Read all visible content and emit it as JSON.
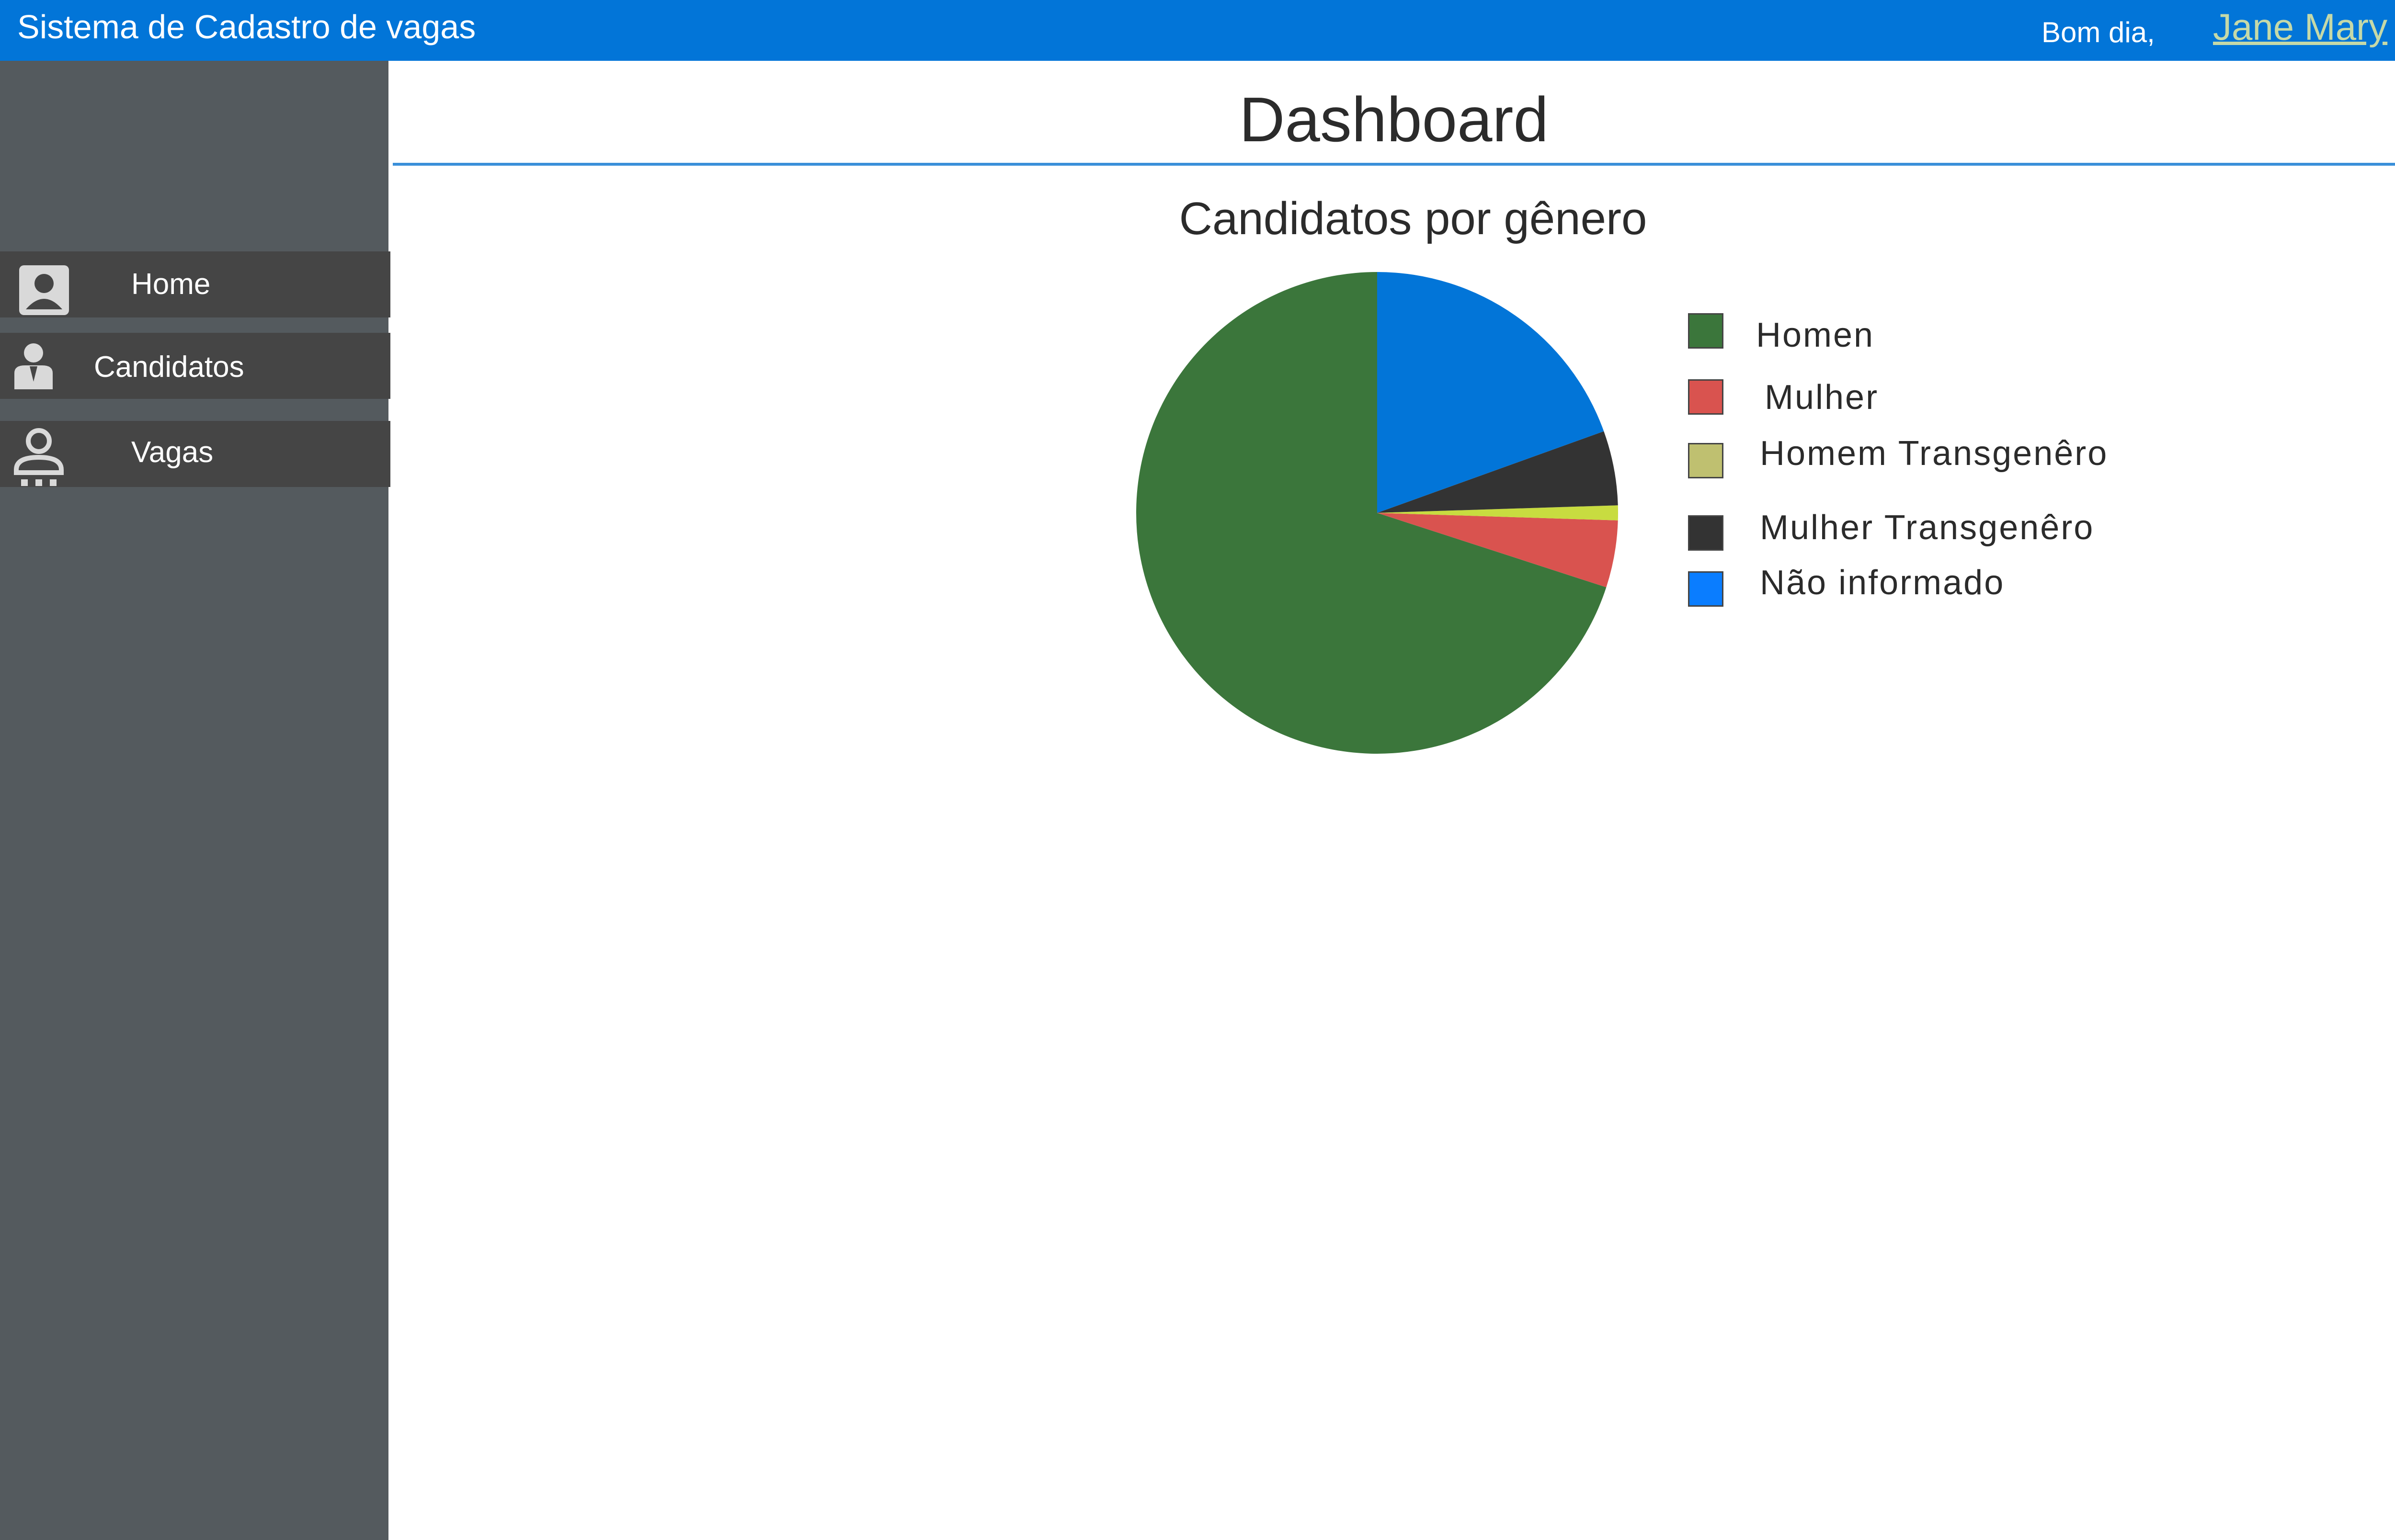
{
  "header": {
    "app_title": "Sistema de Cadastro de vagas",
    "greeting": "Bom dia,",
    "user_name": "Jane Mary",
    "bar_color": "#0275d8"
  },
  "sidebar": {
    "items": [
      {
        "label": "Home",
        "icon": "user-card-icon"
      },
      {
        "label": "Candidatos",
        "icon": "person-suit-icon"
      },
      {
        "label": "Vagas",
        "icon": "person-desk-icon"
      }
    ]
  },
  "main": {
    "page_title": "Dashboard"
  },
  "chart_data": {
    "type": "pie",
    "title": "Candidatos por gênero",
    "legend_position": "right",
    "start_angle_deg": 0,
    "direction": "counterclockwise",
    "series": [
      {
        "name": "Homen",
        "value": 70.0,
        "color": "#3b763b"
      },
      {
        "name": "Mulher",
        "value": 4.5,
        "color": "#d9534f"
      },
      {
        "name": "Homem Transgenêro",
        "value": 1.0,
        "color": "#c8dc40"
      },
      {
        "name": "Mulher Transgenêro",
        "value": 5.0,
        "color": "#333333"
      },
      {
        "name": "Não informado",
        "value": 19.5,
        "color": "#0275d8"
      }
    ],
    "legend_swatches": [
      "#3b763b",
      "#d9534f",
      "#bfc070",
      "#333333",
      "#0a7dff"
    ]
  }
}
